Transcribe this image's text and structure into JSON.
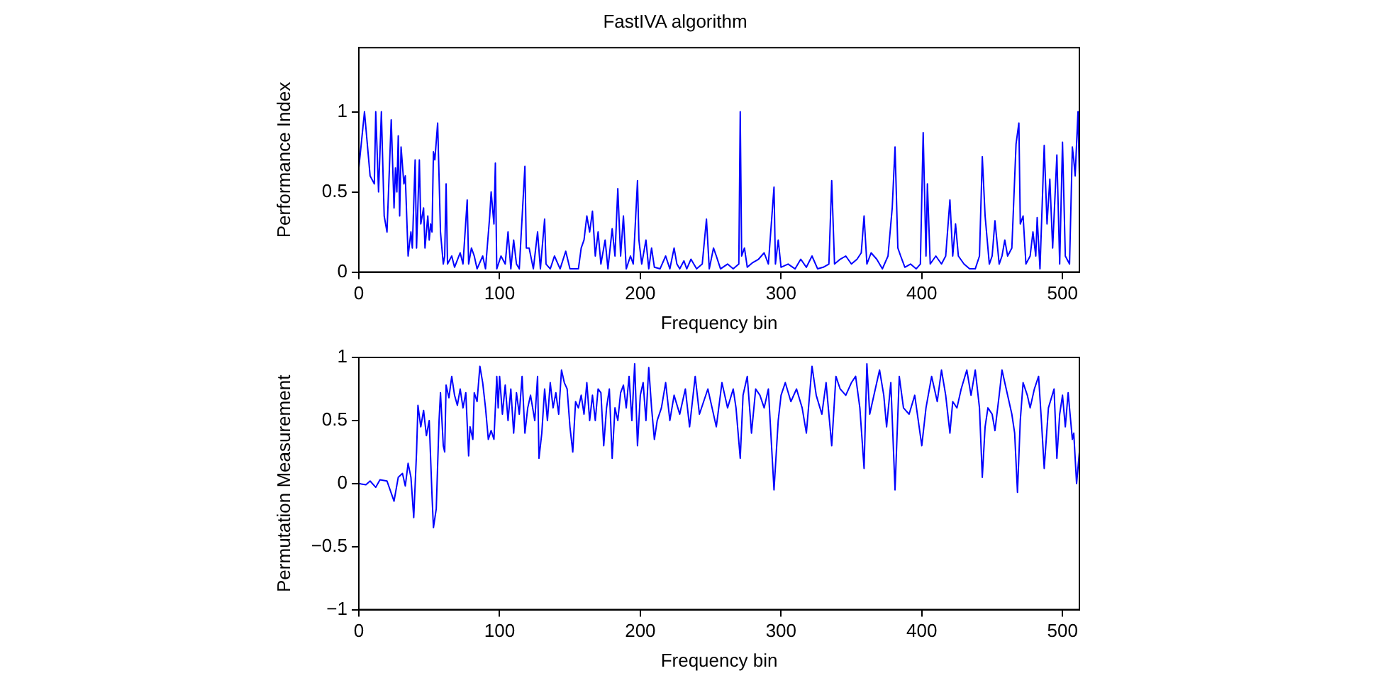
{
  "chart_data": [
    {
      "type": "line",
      "title": "FastIVA algorithm",
      "xlabel": "Frequency bin",
      "ylabel": "Performance Index",
      "xlim": [
        0,
        512
      ],
      "xticks": [
        0,
        100,
        200,
        300,
        400,
        500
      ],
      "ylim": [
        0,
        1.4
      ],
      "yticks": [
        0,
        0.5,
        1
      ],
      "grid": false,
      "legend": false,
      "marker": "none",
      "series": [
        {
          "color": "#0000ff",
          "x": [
            0,
            4,
            8,
            11,
            12,
            14,
            16,
            18,
            20,
            23,
            25,
            26,
            27,
            28,
            29,
            30,
            32,
            33,
            35,
            37,
            38,
            40,
            41,
            43,
            44,
            46,
            47,
            49,
            50,
            51,
            52,
            53,
            54,
            56,
            58,
            60,
            61,
            62,
            63,
            66,
            68,
            72,
            74,
            77,
            78,
            80,
            82,
            84,
            88,
            90,
            93,
            94,
            96,
            97,
            98,
            101,
            104,
            106,
            108,
            110,
            112,
            114,
            118,
            119,
            121,
            124,
            127,
            129,
            132,
            133,
            136,
            139,
            143,
            147,
            150,
            156,
            158,
            160,
            162,
            164,
            166,
            168,
            170,
            172,
            175,
            177,
            180,
            182,
            184,
            186,
            188,
            190,
            193,
            195,
            198,
            199,
            201,
            204,
            206,
            208,
            210,
            214,
            218,
            221,
            224,
            226,
            228,
            231,
            233,
            236,
            240,
            244,
            247,
            249,
            252,
            254,
            257,
            262,
            266,
            270,
            271,
            272,
            274,
            276,
            280,
            284,
            288,
            291,
            295,
            296,
            298,
            300,
            305,
            310,
            314,
            318,
            322,
            326,
            330,
            334,
            336,
            338,
            342,
            346,
            350,
            354,
            357,
            359,
            361,
            364,
            368,
            372,
            376,
            379,
            381,
            383,
            385,
            388,
            392,
            396,
            399,
            401,
            403,
            404,
            406,
            410,
            414,
            417,
            420,
            422,
            424,
            426,
            430,
            434,
            438,
            441,
            443,
            445,
            448,
            450,
            452,
            455,
            457,
            459,
            461,
            464,
            467,
            469,
            470,
            472,
            474,
            477,
            479,
            481,
            482,
            484,
            487,
            489,
            491,
            493,
            496,
            498,
            500,
            502,
            505,
            507,
            508,
            509,
            511,
            512
          ],
          "values": [
            0.65,
            1.0,
            0.6,
            0.55,
            1.0,
            0.5,
            1.0,
            0.35,
            0.25,
            0.95,
            0.4,
            0.65,
            0.5,
            0.85,
            0.35,
            0.78,
            0.55,
            0.6,
            0.1,
            0.25,
            0.15,
            0.7,
            0.15,
            0.7,
            0.3,
            0.4,
            0.15,
            0.35,
            0.2,
            0.3,
            0.25,
            0.75,
            0.7,
            0.93,
            0.25,
            0.05,
            0.1,
            0.55,
            0.05,
            0.1,
            0.03,
            0.12,
            0.05,
            0.45,
            0.05,
            0.15,
            0.1,
            0.02,
            0.1,
            0.02,
            0.35,
            0.5,
            0.3,
            0.68,
            0.02,
            0.1,
            0.05,
            0.25,
            0.02,
            0.2,
            0.05,
            0.02,
            0.66,
            0.15,
            0.15,
            0.02,
            0.25,
            0.02,
            0.33,
            0.05,
            0.02,
            0.1,
            0.02,
            0.13,
            0.02,
            0.02,
            0.15,
            0.2,
            0.35,
            0.25,
            0.38,
            0.1,
            0.25,
            0.05,
            0.2,
            0.02,
            0.27,
            0.1,
            0.52,
            0.1,
            0.35,
            0.02,
            0.1,
            0.05,
            0.57,
            0.2,
            0.05,
            0.2,
            0.02,
            0.15,
            0.03,
            0.02,
            0.1,
            0.02,
            0.15,
            0.05,
            0.02,
            0.07,
            0.02,
            0.08,
            0.02,
            0.05,
            0.33,
            0.02,
            0.15,
            0.1,
            0.02,
            0.05,
            0.02,
            0.05,
            1.0,
            0.1,
            0.15,
            0.03,
            0.06,
            0.08,
            0.12,
            0.05,
            0.53,
            0.05,
            0.2,
            0.03,
            0.05,
            0.02,
            0.08,
            0.03,
            0.1,
            0.02,
            0.03,
            0.05,
            0.57,
            0.05,
            0.08,
            0.1,
            0.05,
            0.08,
            0.12,
            0.35,
            0.05,
            0.12,
            0.08,
            0.02,
            0.1,
            0.4,
            0.78,
            0.15,
            0.1,
            0.03,
            0.05,
            0.02,
            0.05,
            0.87,
            0.1,
            0.55,
            0.05,
            0.1,
            0.05,
            0.1,
            0.45,
            0.1,
            0.3,
            0.1,
            0.05,
            0.02,
            0.02,
            0.1,
            0.72,
            0.35,
            0.05,
            0.1,
            0.32,
            0.05,
            0.1,
            0.2,
            0.1,
            0.15,
            0.8,
            0.93,
            0.3,
            0.35,
            0.05,
            0.1,
            0.25,
            0.1,
            0.34,
            0.02,
            0.79,
            0.3,
            0.58,
            0.15,
            0.73,
            0.05,
            0.81,
            0.1,
            0.05,
            0.78,
            0.7,
            0.6,
            1.0,
            0.6
          ]
        }
      ]
    },
    {
      "type": "line",
      "xlabel": "Frequency bin",
      "ylabel": "Permutation Measurement",
      "xlim": [
        0,
        512
      ],
      "xticks": [
        0,
        100,
        200,
        300,
        400,
        500
      ],
      "ylim": [
        -1,
        1
      ],
      "yticks": [
        {
          "value": -1,
          "label": "−1"
        },
        {
          "value": -0.5,
          "label": "−0.5"
        },
        0,
        0.5,
        1
      ],
      "grid": false,
      "legend": false,
      "marker": "none",
      "series": [
        {
          "color": "#0000ff",
          "x": [
            0,
            5,
            8,
            12,
            15,
            20,
            25,
            28,
            31,
            33,
            35,
            37,
            39,
            41,
            42,
            44,
            46,
            48,
            50,
            52,
            53,
            55,
            57,
            58,
            60,
            61,
            62,
            64,
            66,
            68,
            70,
            72,
            74,
            76,
            78,
            79,
            81,
            82,
            84,
            86,
            88,
            90,
            92,
            94,
            96,
            98,
            99,
            100,
            102,
            104,
            106,
            108,
            110,
            112,
            114,
            116,
            118,
            120,
            122,
            125,
            127,
            128,
            130,
            132,
            134,
            136,
            138,
            140,
            142,
            144,
            146,
            148,
            150,
            152,
            154,
            156,
            158,
            160,
            162,
            164,
            166,
            168,
            170,
            172,
            174,
            176,
            178,
            180,
            182,
            184,
            186,
            188,
            190,
            192,
            194,
            196,
            198,
            200,
            202,
            204,
            206,
            208,
            210,
            212,
            215,
            218,
            221,
            224,
            228,
            232,
            235,
            239,
            242,
            245,
            248,
            251,
            254,
            258,
            262,
            266,
            268,
            271,
            273,
            276,
            279,
            282,
            285,
            288,
            291,
            295,
            298,
            300,
            303,
            307,
            311,
            315,
            318,
            322,
            325,
            329,
            332,
            336,
            339,
            342,
            346,
            350,
            353,
            356,
            359,
            361,
            363,
            366,
            370,
            373,
            375,
            378,
            381,
            384,
            387,
            391,
            395,
            400,
            403,
            407,
            411,
            414,
            417,
            420,
            422,
            425,
            428,
            432,
            435,
            438,
            441,
            443,
            445,
            447,
            450,
            452,
            455,
            457,
            460,
            464,
            466,
            468,
            470,
            472,
            475,
            477,
            480,
            483,
            485,
            487,
            490,
            494,
            496,
            498,
            500,
            502,
            504,
            507,
            508,
            510,
            512
          ],
          "values": [
            0,
            -0.01,
            0.02,
            -0.03,
            0.03,
            0.02,
            -0.14,
            0.05,
            0.08,
            -0.02,
            0.16,
            0.05,
            -0.27,
            0.25,
            0.62,
            0.45,
            0.58,
            0.38,
            0.5,
            -0.1,
            -0.35,
            -0.2,
            0.5,
            0.72,
            0.3,
            0.25,
            0.78,
            0.68,
            0.85,
            0.7,
            0.62,
            0.75,
            0.6,
            0.72,
            0.22,
            0.45,
            0.35,
            0.72,
            0.65,
            0.93,
            0.8,
            0.6,
            0.35,
            0.42,
            0.35,
            0.85,
            0.6,
            0.85,
            0.55,
            0.78,
            0.5,
            0.75,
            0.4,
            0.72,
            0.55,
            0.85,
            0.4,
            0.6,
            0.7,
            0.5,
            0.85,
            0.2,
            0.4,
            0.75,
            0.5,
            0.8,
            0.6,
            0.72,
            0.55,
            0.9,
            0.8,
            0.75,
            0.45,
            0.25,
            0.65,
            0.6,
            0.7,
            0.55,
            0.8,
            0.5,
            0.7,
            0.5,
            0.75,
            0.72,
            0.3,
            0.6,
            0.75,
            0.2,
            0.6,
            0.5,
            0.72,
            0.78,
            0.6,
            0.85,
            0.5,
            0.95,
            0.3,
            0.7,
            0.8,
            0.5,
            0.92,
            0.6,
            0.35,
            0.5,
            0.6,
            0.8,
            0.5,
            0.7,
            0.55,
            0.75,
            0.45,
            0.85,
            0.55,
            0.65,
            0.75,
            0.6,
            0.45,
            0.8,
            0.6,
            0.75,
            0.6,
            0.2,
            0.7,
            0.85,
            0.4,
            0.75,
            0.7,
            0.6,
            0.75,
            -0.05,
            0.5,
            0.7,
            0.8,
            0.65,
            0.75,
            0.6,
            0.4,
            0.93,
            0.7,
            0.55,
            0.8,
            0.3,
            0.85,
            0.75,
            0.7,
            0.8,
            0.85,
            0.6,
            0.12,
            0.95,
            0.55,
            0.7,
            0.9,
            0.7,
            0.45,
            0.8,
            -0.05,
            0.85,
            0.6,
            0.55,
            0.7,
            0.3,
            0.6,
            0.85,
            0.65,
            0.9,
            0.7,
            0.4,
            0.65,
            0.6,
            0.75,
            0.9,
            0.7,
            0.9,
            0.6,
            0.05,
            0.45,
            0.6,
            0.55,
            0.42,
            0.7,
            0.9,
            0.75,
            0.55,
            0.4,
            -0.07,
            0.5,
            0.8,
            0.7,
            0.6,
            0.75,
            0.85,
            0.5,
            0.12,
            0.6,
            0.75,
            0.2,
            0.55,
            0.7,
            0.45,
            0.72,
            0.35,
            0.4,
            0,
            0.25
          ]
        }
      ]
    }
  ]
}
